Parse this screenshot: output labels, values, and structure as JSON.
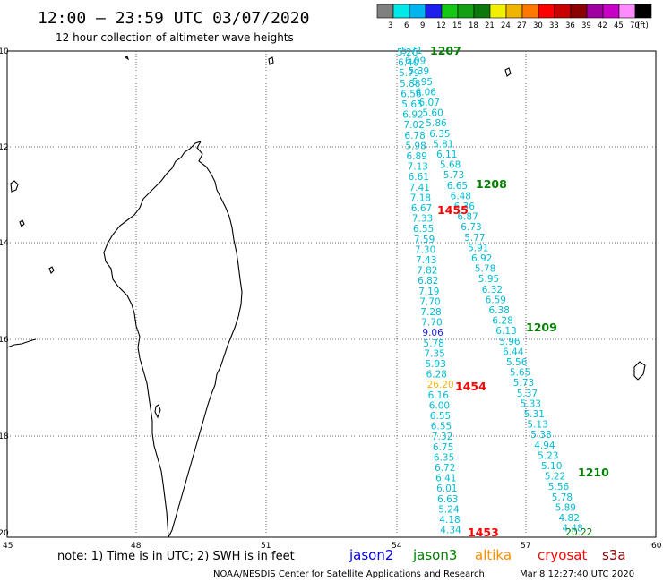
{
  "header": {
    "title": "12:00 – 23:59 UTC 03/07/2020",
    "subtitle": "12 hour collection of altimeter wave heights"
  },
  "legend": {
    "colors": [
      "#808080",
      "#00e8e8",
      "#00b4f0",
      "#1e1ef0",
      "#14c814",
      "#14a014",
      "#0a780a",
      "#f0f000",
      "#f0b400",
      "#ff7800",
      "#ff0000",
      "#c80000",
      "#8c0000",
      "#a000a0",
      "#c800c8",
      "#ff8cff",
      "#000000"
    ],
    "labels": [
      "3",
      "6",
      "9",
      "12",
      "15",
      "18",
      "21",
      "24",
      "27",
      "30",
      "33",
      "36",
      "39",
      "42",
      "45",
      "70",
      "(ft)"
    ]
  },
  "axes": {
    "lon_labels": [
      "45",
      "48",
      "51",
      "54",
      "57",
      "60"
    ],
    "lat_labels": [
      "-10",
      "-12",
      "-14",
      "-16",
      "-18",
      "-20"
    ]
  },
  "tracks": {
    "track_a": {
      "color": "#00bcd4",
      "values": [
        "5.71",
        "5.26",
        "6.09",
        "6.40",
        "5.39",
        "5.79",
        "5.95",
        "5.88",
        "6.06",
        "6.56",
        "6.07",
        "5.65",
        "5.60",
        "6.92",
        "5.86",
        "7.02",
        "6.35",
        "6.78",
        "5.81",
        "5.98",
        "6.11",
        "6.89",
        "5.68",
        "7.13",
        "5.73",
        "6.61",
        "6.65",
        "7.41",
        "6.48",
        "7.18",
        "6.36",
        "6.67",
        "6.87",
        "7.33",
        "6.73",
        "6.55",
        "5.77",
        "7.59",
        "5.91",
        "7.30",
        "6.92",
        "7.43",
        "5.78",
        "7.82",
        "5.95",
        "6.82",
        "6.32",
        "7.19",
        "6.59",
        "7.70",
        "6.38",
        "7.28",
        "6.28",
        "7.70",
        "6.13",
        "9.06",
        "5.96",
        "5.78",
        "6.44",
        "7.35",
        "5.56",
        "5.93",
        "5.65",
        "6.28",
        "5.73",
        "26.20",
        "5.37",
        "6.16",
        "5.33",
        "6.00",
        "5.31",
        "6.55",
        "5.13",
        "6.55",
        "5.38",
        "7.32",
        "4.94",
        "6.75",
        "5.23",
        "6.35",
        "5.10",
        "6.72",
        "5.22",
        "6.41",
        "5.56",
        "6.01",
        "5.78",
        "6.63",
        "5.89",
        "5.24",
        "4.82",
        "4.18",
        "4.48",
        "4.34",
        "20.22"
      ]
    }
  },
  "time_labels": [
    {
      "text": "1207",
      "satellite": "jason3"
    },
    {
      "text": "1208",
      "satellite": "jason3"
    },
    {
      "text": "1455",
      "satellite": "cryosat"
    },
    {
      "text": "1209",
      "satellite": "jason3"
    },
    {
      "text": "1454",
      "satellite": "cryosat"
    },
    {
      "text": "1210",
      "satellite": "jason3"
    },
    {
      "text": "1453",
      "satellite": "cryosat"
    }
  ],
  "footer": {
    "note": "note:  1) Time is in UTC;  2) SWH is in feet",
    "satellites": [
      {
        "name": "jason2",
        "color": "#0000ff"
      },
      {
        "name": "jason3",
        "color": "#008000"
      },
      {
        "name": "altika",
        "color": "#ff8c00"
      },
      {
        "name": "cryosat",
        "color": "#ff0000"
      },
      {
        "name": "s3a",
        "color": "#8b0000"
      }
    ],
    "credit": "NOAA/NESDIS Center for Satellite Applications and Research",
    "timestamp": "Mar  8 12:27:40 UTC 2020"
  }
}
